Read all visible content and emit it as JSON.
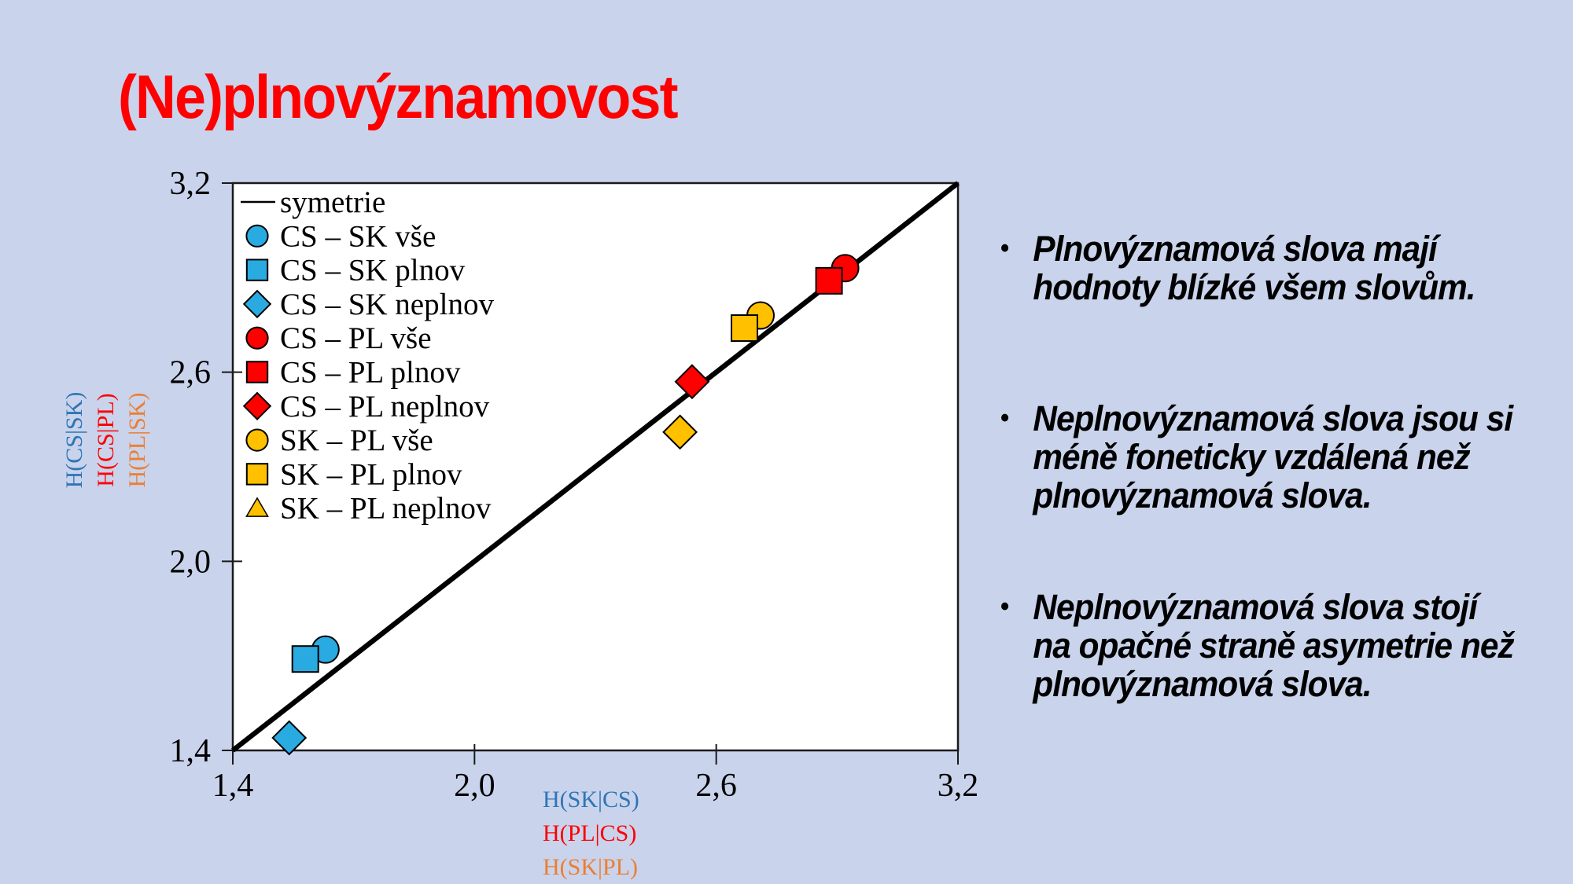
{
  "slide": {
    "title": "(Ne)plnovýznamovost"
  },
  "palette": {
    "background": "#C9D3EB",
    "title_red": "#FF0000",
    "body_text": "#000000",
    "marker_blue": "#29ABE2",
    "marker_red": "#FF0000",
    "marker_yellow": "#FFC000",
    "axis_label_blue": "#2E75B6",
    "axis_label_red": "#FF0000",
    "axis_label_orange": "#ED7D31"
  },
  "bullets": [
    "Plnovýznamová slova mají hodnoty blízké všem slovům.",
    "Neplnovýznamová slova jsou si méně foneticky vzdálená než plnovýznamová slova.",
    "Neplnovýznamová slova stojí na opačné straně asymetrie než plnovýznamová slova."
  ],
  "chart_data": {
    "type": "scatter",
    "grid": false,
    "legend_position": "top-left-inside",
    "x_axis": {
      "range": [
        1.4,
        3.2
      ],
      "ticks": [
        {
          "value": 1.4,
          "label": "1,4"
        },
        {
          "value": 2.0,
          "label": "2,0"
        },
        {
          "value": 2.6,
          "label": "2,6"
        },
        {
          "value": 3.2,
          "label": "3,2"
        }
      ],
      "label_lines": [
        {
          "text": "H(SK|CS)",
          "color": "#2E75B6"
        },
        {
          "text": "H(PL|CS)",
          "color": "#FF0000"
        },
        {
          "text": "H(SK|PL)",
          "color": "#ED7D31"
        }
      ]
    },
    "y_axis": {
      "range": [
        1.4,
        3.2
      ],
      "ticks": [
        {
          "value": 1.4,
          "label": "1,4"
        },
        {
          "value": 2.0,
          "label": "2,0"
        },
        {
          "value": 2.6,
          "label": "2,6"
        },
        {
          "value": 3.2,
          "label": "3,2"
        }
      ],
      "label_lines": [
        {
          "text": "H(CS|SK)",
          "color": "#2E75B6"
        },
        {
          "text": "H(CS|PL)",
          "color": "#FF0000"
        },
        {
          "text": "H(PL|SK)",
          "color": "#ED7D31"
        }
      ]
    },
    "reference_line": {
      "label": "symetrie",
      "from": [
        1.4,
        1.4
      ],
      "to": [
        3.2,
        3.2
      ],
      "color": "#000000"
    },
    "series": [
      {
        "name": "CS – SK vše",
        "color": "#29ABE2",
        "legend_marker": "circle",
        "plot_marker": "circle",
        "x": 1.63,
        "y": 1.72
      },
      {
        "name": "CS – SK plnov",
        "color": "#29ABE2",
        "legend_marker": "square",
        "plot_marker": "square",
        "x": 1.58,
        "y": 1.69
      },
      {
        "name": "CS – SK neplnov",
        "color": "#29ABE2",
        "legend_marker": "diamond",
        "plot_marker": "diamond",
        "x": 1.54,
        "y": 1.44
      },
      {
        "name": "CS – PL vše",
        "color": "#FF0000",
        "legend_marker": "circle",
        "plot_marker": "circle",
        "x": 2.92,
        "y": 2.93
      },
      {
        "name": "CS – PL plnov",
        "color": "#FF0000",
        "legend_marker": "square",
        "plot_marker": "square",
        "x": 2.88,
        "y": 2.89
      },
      {
        "name": "CS – PL neplnov",
        "color": "#FF0000",
        "legend_marker": "diamond",
        "plot_marker": "diamond",
        "x": 2.54,
        "y": 2.57
      },
      {
        "name": "SK – PL vše",
        "color": "#FFC000",
        "legend_marker": "circle",
        "plot_marker": "circle",
        "x": 2.71,
        "y": 2.78
      },
      {
        "name": "SK – PL plnov",
        "color": "#FFC000",
        "legend_marker": "square",
        "plot_marker": "square",
        "x": 2.67,
        "y": 2.74
      },
      {
        "name": "SK – PL neplnov",
        "color": "#FFC000",
        "legend_marker": "triangle",
        "plot_marker": "diamond",
        "x": 2.51,
        "y": 2.41
      }
    ]
  }
}
